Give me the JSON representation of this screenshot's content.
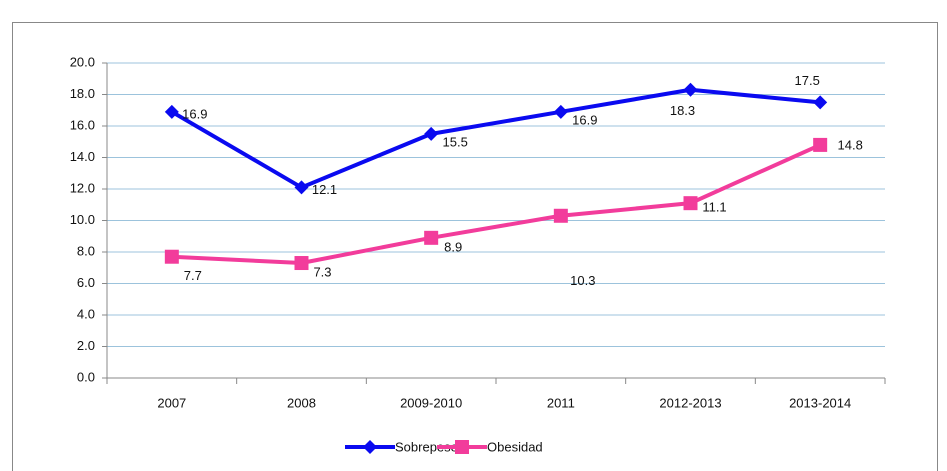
{
  "chart_data": {
    "type": "line",
    "categories": [
      "2007",
      "2008",
      "2009-2010",
      "2011",
      "2012-2013",
      "2013-2014"
    ],
    "series": [
      {
        "name": "Sobrepeso",
        "color": "#0a0af0",
        "marker": "diamond",
        "values": [
          16.9,
          12.1,
          15.5,
          16.9,
          18.3,
          17.5
        ]
      },
      {
        "name": "Obesidad",
        "color": "#f23c9b",
        "marker": "square",
        "values": [
          7.7,
          7.3,
          8.9,
          10.3,
          11.1,
          14.8
        ]
      }
    ],
    "ylim": [
      0,
      20
    ],
    "yticks": [
      {
        "value": 0,
        "label": "0.0"
      },
      {
        "value": 2,
        "label": "2.0"
      },
      {
        "value": 4,
        "label": "4.0"
      },
      {
        "value": 6,
        "label": "6.0"
      },
      {
        "value": 8,
        "label": "8.0"
      },
      {
        "value": 10,
        "label": "10.0"
      },
      {
        "value": 12,
        "label": "12.0"
      },
      {
        "value": 14,
        "label": "14.0"
      },
      {
        "value": 16,
        "label": "16.0"
      },
      {
        "value": 18,
        "label": "18.0"
      },
      {
        "value": 20,
        "label": "20.0"
      }
    ],
    "grid": true,
    "legend": "bottom"
  }
}
